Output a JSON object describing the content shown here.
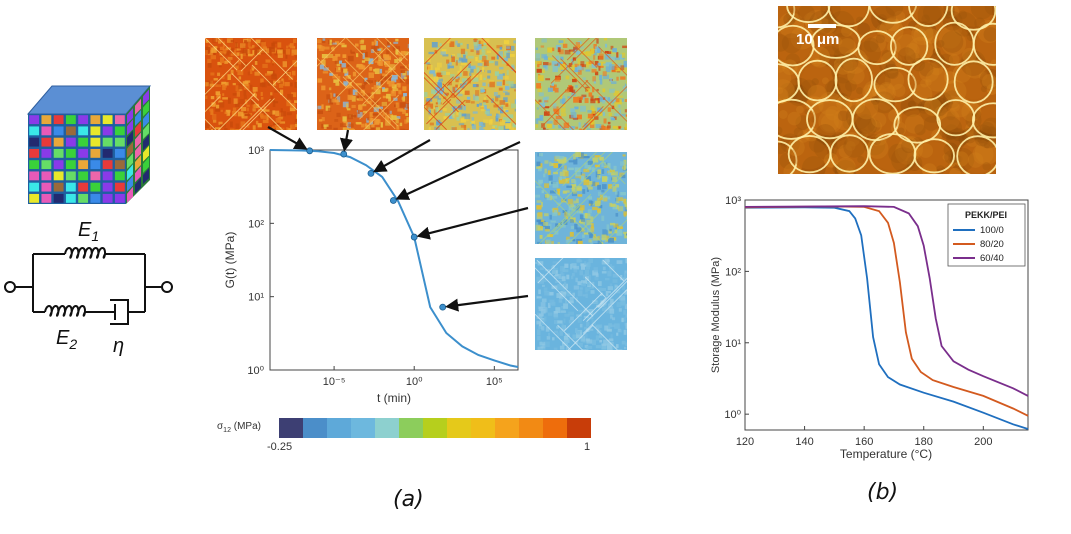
{
  "labels": {
    "panel_a": "(a)",
    "panel_b": "(b)"
  },
  "model": {
    "e1": "E",
    "e1_sub": "1",
    "e2": "E",
    "e2_sub": "2",
    "eta": "η"
  },
  "micrograph": {
    "scale_bar": "10 μm"
  },
  "colorbar": {
    "title_main": "σ",
    "title_sub": "12",
    "title_unit": " (MPa)",
    "min_label": "-0.25",
    "max_label": "1",
    "colors": [
      "#3d3f73",
      "#4b8ec9",
      "#5ea9d9",
      "#6db8de",
      "#8dd0cf",
      "#8ccd5c",
      "#b6cf1d",
      "#e5c91a",
      "#f0be19",
      "#f5a31c",
      "#f28a14",
      "#ee6d0c",
      "#c83d09"
    ]
  },
  "stress_maps": [
    {
      "base": "#d9520e",
      "noise": [
        "#e87a1c",
        "#f0a030",
        "#c84a0a"
      ],
      "lines": "#ffdd88"
    },
    {
      "base": "#dc6318",
      "noise": [
        "#f09a30",
        "#8ab8d8",
        "#e8c040",
        "#c85010"
      ],
      "lines": "#f7c060"
    },
    {
      "base": "#d8c050",
      "noise": [
        "#7ab8d8",
        "#9ad0a0",
        "#e07020",
        "#f0d040",
        "#60a0d0"
      ],
      "lines": "#e04010"
    },
    {
      "base": "#b0c878",
      "noise": [
        "#6ab0da",
        "#e0c830",
        "#f07a20",
        "#80c0d0",
        "#d04010"
      ],
      "lines": "#e06018"
    },
    {
      "base": "#6fb4da",
      "noise": [
        "#88c8c8",
        "#c8d060",
        "#e0c030",
        "#4a90c8"
      ],
      "lines": "#a8d080"
    },
    {
      "base": "#6ab4de",
      "noise": [
        "#78bce0",
        "#90c8e4"
      ],
      "lines": "#cfe8f4"
    }
  ],
  "chart_data": [
    {
      "type": "line",
      "title": "",
      "xlabel": "t (min)",
      "ylabel": "G(t) (MPa)",
      "x_scale": "log",
      "y_scale": "log",
      "xlim": [
        1e-09,
        3000000.0
      ],
      "ylim": [
        1,
        1000
      ],
      "x_tick_labels": [
        "10⁻⁵",
        "10⁰",
        "10⁵"
      ],
      "y_tick_labels": [
        "10⁰",
        "10¹",
        "10²",
        "10³"
      ],
      "series": [
        {
          "x": [
            1e-09,
            1e-08,
            1e-07,
            1e-06,
            1e-05,
            0.0001,
            0.001,
            0.01,
            0.1,
            1,
            10,
            100,
            1000,
            10000.0,
            100000.0,
            1000000.0,
            3000000.0
          ],
          "y": [
            1000,
            995,
            985,
            960,
            910,
            800,
            620,
            430,
            200,
            65,
            7.2,
            3.2,
            2.1,
            1.6,
            1.35,
            1.15,
            1.1
          ],
          "color": "#3c8fcc"
        }
      ],
      "markers": {
        "x": [
          3e-07,
          4e-05,
          0.002,
          0.05,
          1,
          60
        ],
        "y": [
          975,
          880,
          480,
          205,
          65,
          7.2
        ]
      }
    },
    {
      "type": "line",
      "title": "",
      "xlabel": "Temperature (°C)",
      "ylabel": "Storage Modulus (MPa)",
      "y_scale": "log",
      "xlim": [
        120,
        215
      ],
      "ylim": [
        0.6,
        1000
      ],
      "x_ticks": [
        120,
        140,
        160,
        180,
        200
      ],
      "y_tick_labels": [
        "10⁰",
        "10¹",
        "10²",
        "10³"
      ],
      "legend_title": "PEKK/PEI",
      "legend_position": "top-right",
      "series": [
        {
          "name": "100/0",
          "color": "#1f6fbf",
          "x": [
            120,
            140,
            150,
            155,
            157,
            159,
            161,
            163,
            165,
            168,
            172,
            180,
            190,
            200,
            210,
            215
          ],
          "y": [
            780,
            790,
            780,
            700,
            550,
            320,
            80,
            12,
            5,
            3.3,
            2.6,
            2.0,
            1.5,
            1.05,
            0.72,
            0.62
          ]
        },
        {
          "name": "80/20",
          "color": "#d35a1f",
          "x": [
            120,
            150,
            160,
            165,
            168,
            170,
            172,
            174,
            176,
            179,
            183,
            190,
            200,
            210,
            215
          ],
          "y": [
            790,
            810,
            800,
            700,
            480,
            250,
            70,
            14,
            6,
            3.9,
            3.0,
            2.4,
            1.8,
            1.2,
            0.95
          ]
        },
        {
          "name": "60/40",
          "color": "#7a2e8c",
          "x": [
            120,
            160,
            170,
            175,
            178,
            180,
            182,
            184,
            186,
            190,
            195,
            200,
            210,
            215
          ],
          "y": [
            800,
            820,
            800,
            650,
            430,
            230,
            80,
            22,
            9,
            5.5,
            4.2,
            3.4,
            2.3,
            1.8
          ]
        }
      ]
    }
  ]
}
